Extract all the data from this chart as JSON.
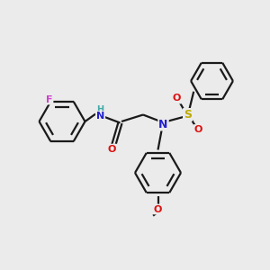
{
  "bg_color": "#ebebeb",
  "bond_color": "#1a1a1a",
  "atom_colors": {
    "F": "#cc44cc",
    "N": "#2222cc",
    "O": "#dd1111",
    "S": "#bbaa00",
    "H": "#44aaaa",
    "C": "#1a1a1a"
  },
  "figsize": [
    3.0,
    3.0
  ],
  "dpi": 100,
  "lw": 1.6,
  "ring_r": 0.55,
  "font_size": 7.5
}
